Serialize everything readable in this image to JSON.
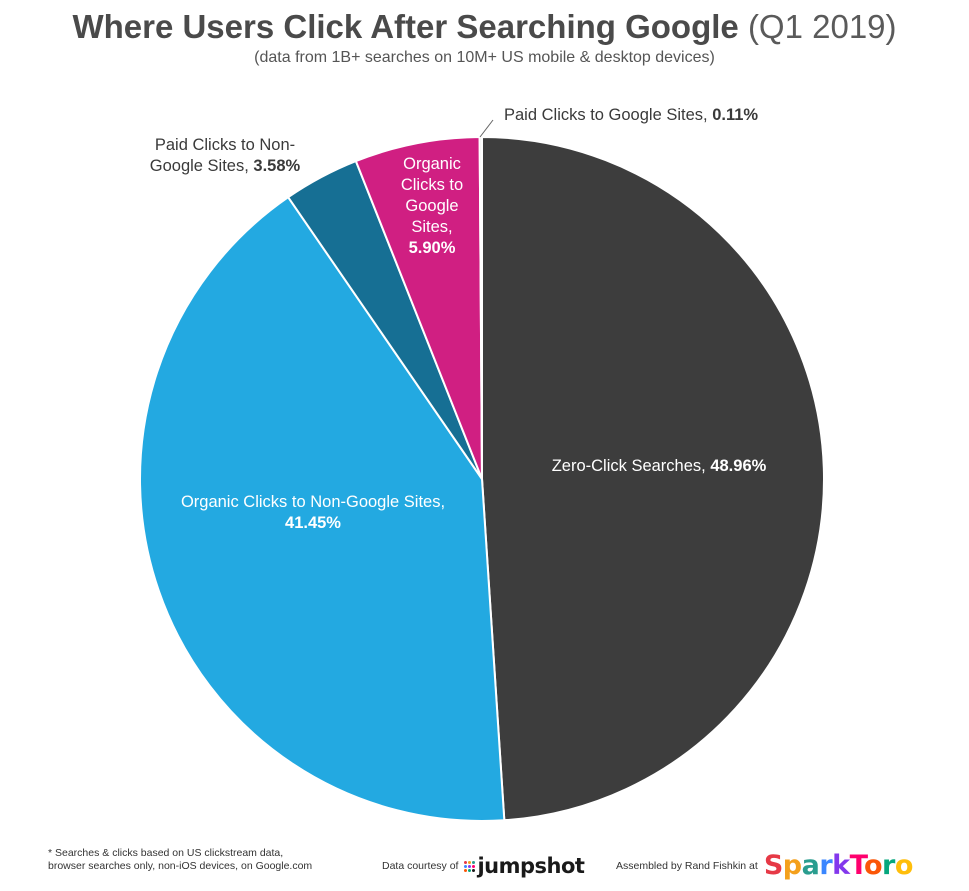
{
  "header": {
    "title_main": "Where Users Click After Searching Google",
    "title_suffix": "(Q1 2019)",
    "subtitle": "(data from 1B+ searches on 10M+ US mobile & desktop devices)"
  },
  "chart_data": {
    "type": "pie",
    "start_angle_deg": 0,
    "direction": "clockwise",
    "slices": [
      {
        "label": "Zero-Click Searches",
        "value": 48.96,
        "value_text": "48.96%",
        "color": "#3d3d3d"
      },
      {
        "label": "Organic Clicks to Non-Google Sites",
        "value": 41.45,
        "value_text": "41.45%",
        "color": "#23a9e1"
      },
      {
        "label": "Paid Clicks to Non-Google Sites",
        "value": 3.58,
        "value_text": "3.58%",
        "color": "#166f94"
      },
      {
        "label": "Organic Clicks to Google Sites",
        "value": 5.9,
        "value_text": "5.90%",
        "color": "#d01f82"
      },
      {
        "label": "Paid Clicks to Google Sites",
        "value": 0.11,
        "value_text": "0.11%",
        "color": "#e8e8e8"
      }
    ],
    "labels": {
      "zero_click": {
        "prefix": "Zero-Click Searches,",
        "value": "48.96%"
      },
      "organic_non_google": {
        "line1": "Organic Clicks to Non-Google Sites,",
        "value": "41.45%"
      },
      "paid_non_google": {
        "line1": "Paid Clicks to Non-",
        "line2": "Google Sites,",
        "value": "3.58%"
      },
      "organic_google": {
        "line1": "Organic",
        "line2": "Clicks to",
        "line3": "Google",
        "line4": "Sites,",
        "value": "5.90%"
      },
      "paid_google": {
        "prefix": "Paid Clicks to Google Sites,",
        "value": "0.11%"
      }
    }
  },
  "footer": {
    "footnote_line1": "* Searches & clicks based on US clickstream data,",
    "footnote_line2": "browser searches only, non-iOS devices, on Google.com",
    "courtesy": "Data courtesy of",
    "jumpshot": "jumpshot",
    "assembled": "Assembled by Rand Fishkin at",
    "sparktoro_letters": [
      "S",
      "p",
      "a",
      "r",
      "k",
      "T",
      "o",
      "r",
      "o"
    ],
    "sparktoro_colors": [
      "#e63946",
      "#f4a01c",
      "#2a9d8f",
      "#3a86ff",
      "#8338ec",
      "#ff006e",
      "#fb5607",
      "#06a77d",
      "#ffbe0b"
    ],
    "jumpshot_dot_colors": [
      "#e63946",
      "#f4a01c",
      "#2a9d8f",
      "#3a86ff",
      "#8338ec",
      "#ff006e",
      "#fb5607",
      "#06a77d",
      "#1a1a1a"
    ]
  }
}
